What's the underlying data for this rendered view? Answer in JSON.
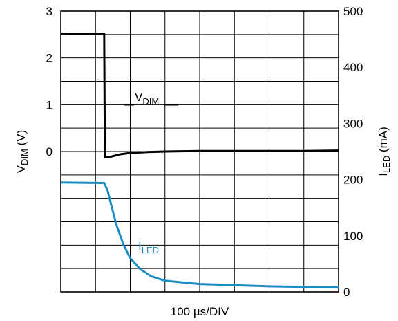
{
  "chart_data": {
    "type": "line",
    "x_divisions": 8,
    "xlabel": "100 µs/DIV",
    "y_left": {
      "label_main": "V",
      "label_sub": "DIM",
      "label_unit": " (V)",
      "range": [
        -3,
        3
      ],
      "ticks": [
        0,
        1,
        2,
        3
      ]
    },
    "y_right": {
      "label_main": "I",
      "label_sub": "LED",
      "label_unit": " (mA)",
      "range": [
        0,
        500
      ],
      "ticks": [
        0,
        100,
        200,
        300,
        400,
        500
      ]
    },
    "grid": true,
    "series": [
      {
        "name": "VDIM",
        "name_main": "V",
        "name_sub": "DIM",
        "axis": "left",
        "color": "#000000",
        "x": [
          0,
          1.25,
          1.27,
          1.4,
          1.7,
          2.0,
          2.5,
          3.0,
          4.0,
          5.0,
          6.0,
          7.0,
          8.0
        ],
        "y": [
          2.52,
          2.52,
          -0.12,
          -0.12,
          -0.06,
          -0.03,
          -0.01,
          0.0,
          0.01,
          0.01,
          0.01,
          0.01,
          0.02
        ]
      },
      {
        "name": "ILED",
        "name_main": "I",
        "name_sub": "LED",
        "axis": "right",
        "color": "#1a8cc4",
        "x": [
          0,
          1.25,
          1.35,
          1.45,
          1.6,
          1.8,
          2.0,
          2.3,
          2.6,
          3.0,
          3.5,
          4.0,
          4.5,
          5.0,
          6.0,
          7.0,
          8.0
        ],
        "y": [
          195,
          194,
          180,
          155,
          120,
          85,
          60,
          40,
          28,
          20,
          17,
          14,
          13,
          12,
          10,
          9,
          8
        ]
      }
    ]
  }
}
